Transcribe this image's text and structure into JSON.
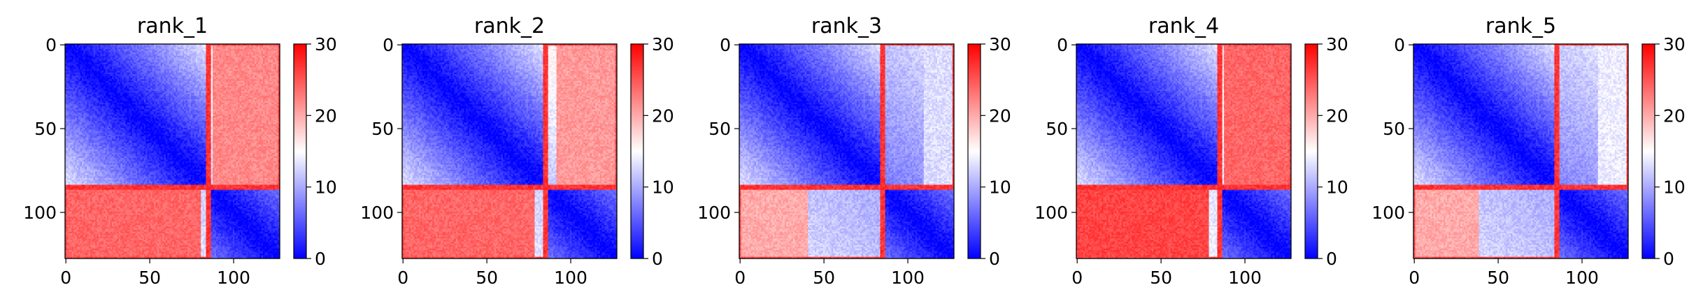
{
  "chart_data": [
    {
      "type": "heatmap",
      "title": "rank_1",
      "x_ticks": [
        "0",
        "50",
        "100"
      ],
      "y_ticks": [
        "0",
        "50",
        "100"
      ],
      "xlim": [
        0,
        127
      ],
      "ylim": [
        127,
        0
      ],
      "colorbar": {
        "ticks": [
          "0",
          "10",
          "20",
          "30"
        ],
        "range": [
          0,
          30
        ],
        "colormap": "bwr"
      },
      "block_boundary": 85,
      "upper_split": 88,
      "lower_split": 80,
      "upper_level": 22,
      "lower_level": 24
    },
    {
      "type": "heatmap",
      "title": "rank_2",
      "x_ticks": [
        "0",
        "50",
        "100"
      ],
      "y_ticks": [
        "0",
        "50",
        "100"
      ],
      "xlim": [
        0,
        127
      ],
      "ylim": [
        127,
        0
      ],
      "colorbar": {
        "ticks": [
          "0",
          "10",
          "20",
          "30"
        ],
        "range": [
          0,
          30
        ],
        "colormap": "bwr"
      },
      "block_boundary": 85,
      "upper_split": 92,
      "lower_split": 78,
      "upper_level": 21,
      "lower_level": 24
    },
    {
      "type": "heatmap",
      "title": "rank_3",
      "x_ticks": [
        "0",
        "50",
        "100"
      ],
      "y_ticks": [
        "0",
        "50",
        "100"
      ],
      "xlim": [
        0,
        127
      ],
      "ylim": [
        127,
        0
      ],
      "colorbar": {
        "ticks": [
          "0",
          "10",
          "20",
          "30"
        ],
        "range": [
          0,
          30
        ],
        "colormap": "bwr"
      },
      "block_boundary": 85,
      "upper_split": 110,
      "lower_split": 40,
      "upper_level": 13,
      "lower_level": 20
    },
    {
      "type": "heatmap",
      "title": "rank_4",
      "x_ticks": [
        "0",
        "50",
        "100"
      ],
      "y_ticks": [
        "0",
        "50",
        "100"
      ],
      "xlim": [
        0,
        127
      ],
      "ylim": [
        127,
        0
      ],
      "colorbar": {
        "ticks": [
          "0",
          "10",
          "20",
          "30"
        ],
        "range": [
          0,
          30
        ],
        "colormap": "bwr"
      },
      "block_boundary": 85,
      "upper_split": 88,
      "lower_split": 78,
      "upper_level": 24,
      "lower_level": 26
    },
    {
      "type": "heatmap",
      "title": "rank_5",
      "x_ticks": [
        "0",
        "50",
        "100"
      ],
      "y_ticks": [
        "0",
        "50",
        "100"
      ],
      "xlim": [
        0,
        127
      ],
      "ylim": [
        127,
        0
      ],
      "colorbar": {
        "ticks": [
          "0",
          "10",
          "20",
          "30"
        ],
        "range": [
          0,
          30
        ],
        "colormap": "bwr"
      },
      "block_boundary": 85,
      "upper_split": 110,
      "lower_split": 38,
      "upper_level": 14,
      "lower_level": 20
    }
  ]
}
